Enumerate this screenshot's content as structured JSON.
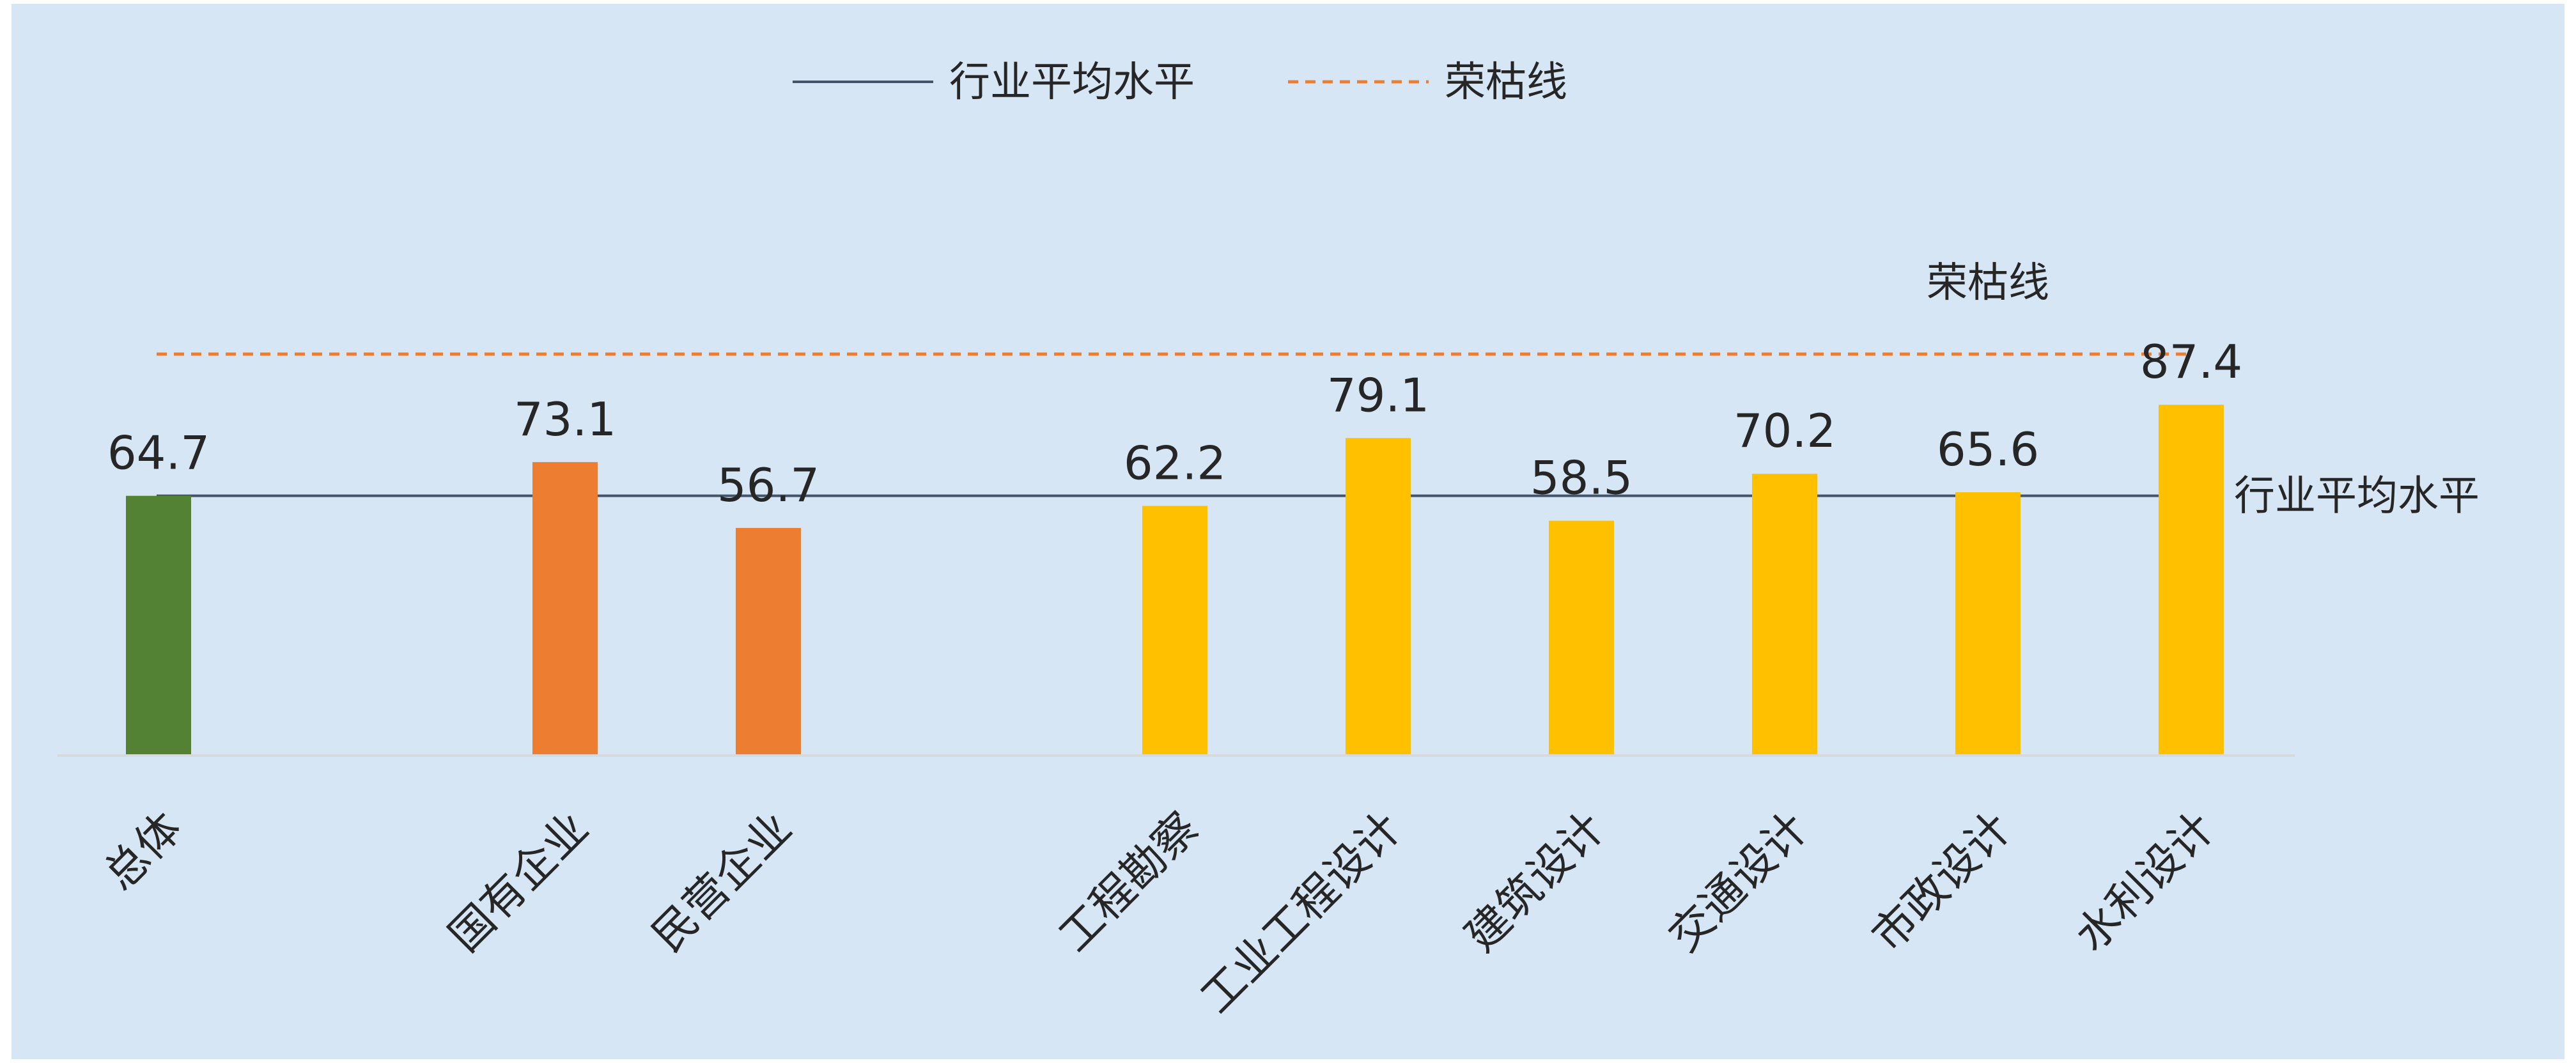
{
  "chart_data": {
    "type": "bar",
    "categories": [
      "总体",
      "国有企业",
      "民营企业",
      "工程勘察",
      "工业工程设计",
      "建筑设计",
      "交通设计",
      "市政设计",
      "水利设计"
    ],
    "values": [
      64.7,
      73.1,
      56.7,
      62.2,
      79.1,
      58.5,
      70.2,
      65.6,
      87.4
    ],
    "bar_colors": [
      "#548235",
      "#ED7D31",
      "#ED7D31",
      "#FFC000",
      "#FFC000",
      "#FFC000",
      "#FFC000",
      "#FFC000",
      "#FFC000"
    ],
    "category_gaps_before": [
      0,
      1,
      0,
      1,
      0,
      0,
      0,
      0,
      0
    ],
    "ylim": [
      0,
      100
    ],
    "reference_lines": [
      {
        "name": "行业平均水平",
        "value": 64.7,
        "style": "solid",
        "color": "#44546A"
      },
      {
        "name": "荣枯线",
        "value": 100,
        "style": "dashed",
        "color": "#ED7D31"
      }
    ],
    "legend": {
      "position": "top",
      "entries": [
        {
          "label": "行业平均水平",
          "style": "solid",
          "color": "#44546A"
        },
        {
          "label": "荣枯线",
          "style": "dashed",
          "color": "#ED7D31"
        }
      ]
    },
    "background": "#D6E6F5",
    "grid": false
  }
}
